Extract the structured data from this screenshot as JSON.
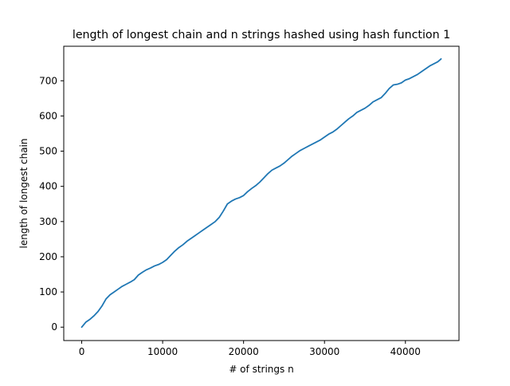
{
  "chart_data": {
    "type": "line",
    "title": "length of longest chain and n strings hashed using hash function 1",
    "xlabel": "# of strings n",
    "ylabel": "length of longest chain",
    "xlim": [
      -2220,
      46620
    ],
    "ylim": [
      -38,
      798
    ],
    "x_ticks": [
      0,
      10000,
      20000,
      30000,
      40000
    ],
    "y_ticks": [
      0,
      100,
      200,
      300,
      400,
      500,
      600,
      700
    ],
    "grid": false,
    "legend": "none",
    "series": [
      {
        "color": "#1f77b4",
        "x": [
          0,
          500,
          1000,
          1500,
          2000,
          2500,
          3000,
          3500,
          4000,
          4500,
          5000,
          5500,
          6000,
          6500,
          7000,
          7500,
          8000,
          8500,
          9000,
          9500,
          10000,
          10500,
          11000,
          11500,
          12000,
          12500,
          13000,
          13500,
          14000,
          14500,
          15000,
          15500,
          16000,
          16500,
          17000,
          17500,
          18000,
          18500,
          19000,
          19500,
          20000,
          20500,
          21000,
          21500,
          22000,
          22500,
          23000,
          23500,
          24000,
          24500,
          25000,
          25500,
          26000,
          26500,
          27000,
          27500,
          28000,
          28500,
          29000,
          29500,
          30000,
          30500,
          31000,
          31500,
          32000,
          32500,
          33000,
          33500,
          34000,
          34500,
          35000,
          35500,
          36000,
          36500,
          37000,
          37500,
          38000,
          38500,
          39000,
          39500,
          40000,
          40500,
          41000,
          41500,
          42000,
          42500,
          43000,
          43500,
          44000,
          44400
        ],
        "values": [
          0,
          14,
          22,
          32,
          44,
          60,
          80,
          92,
          100,
          108,
          116,
          122,
          128,
          135,
          148,
          156,
          163,
          168,
          174,
          178,
          184,
          192,
          204,
          216,
          226,
          234,
          244,
          252,
          260,
          268,
          276,
          284,
          292,
          300,
          312,
          330,
          350,
          358,
          364,
          368,
          374,
          385,
          394,
          402,
          412,
          424,
          436,
          446,
          452,
          458,
          466,
          476,
          486,
          494,
          502,
          508,
          514,
          520,
          526,
          532,
          540,
          548,
          554,
          562,
          572,
          582,
          592,
          600,
          610,
          616,
          622,
          630,
          640,
          646,
          652,
          664,
          678,
          688,
          690,
          694,
          702,
          706,
          712,
          718,
          726,
          734,
          742,
          748,
          754,
          762
        ]
      }
    ]
  }
}
